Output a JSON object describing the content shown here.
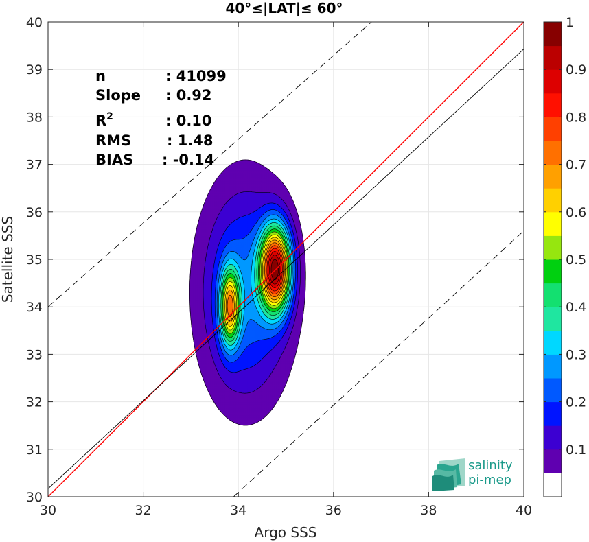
{
  "chart_data": {
    "type": "contour",
    "title": "40°≤|LAT|≤ 60°",
    "xlabel": "Argo SSS",
    "ylabel": "Satellite SSS",
    "xlim": [
      30,
      40
    ],
    "ylim": [
      30,
      40
    ],
    "xticks": [
      "30",
      "32",
      "34",
      "36",
      "38",
      "40"
    ],
    "yticks": [
      "30",
      "31",
      "32",
      "33",
      "34",
      "35",
      "36",
      "37",
      "38",
      "39",
      "40"
    ],
    "grid": true,
    "stats": [
      {
        "label": "n",
        "value": ": 41099"
      },
      {
        "label": "Slope",
        "value": ": 0.92"
      },
      {
        "label": "R",
        "sup": "2",
        "value": ": 0.10"
      },
      {
        "label": "RMS",
        "value": ": 1.48"
      },
      {
        "label": "BIAS",
        "value": ": -0.14"
      }
    ],
    "lines": [
      {
        "name": "1:1",
        "color": "#ff0000",
        "x": [
          30,
          40
        ],
        "y": [
          30,
          40
        ]
      },
      {
        "name": "fit",
        "color": "#000000",
        "x": [
          30,
          40
        ],
        "y": [
          30.17,
          39.43
        ]
      },
      {
        "name": "upper",
        "color": "#000000",
        "dash": true,
        "x": [
          30,
          36.8
        ],
        "y": [
          34,
          40
        ]
      },
      {
        "name": "lower",
        "color": "#000000",
        "dash": true,
        "x": [
          33.9,
          40
        ],
        "y": [
          30,
          35.6
        ]
      }
    ],
    "density_peaks": [
      {
        "x": 34.78,
        "y": 34.8,
        "sx": 0.22,
        "sy": 0.62,
        "w": 1.0
      },
      {
        "x": 33.82,
        "y": 34.0,
        "sx": 0.14,
        "sy": 0.55,
        "w": 0.62
      },
      {
        "x": 34.15,
        "y": 34.3,
        "sx": 0.65,
        "sy": 1.55,
        "w": 0.3
      }
    ],
    "contour_levels": [
      0.05,
      0.1,
      0.15,
      0.2,
      0.25,
      0.3,
      0.35,
      0.4,
      0.45,
      0.5,
      0.55,
      0.6,
      0.65,
      0.7,
      0.75,
      0.8,
      0.85,
      0.9,
      0.95
    ],
    "colorbar": {
      "ticks": [
        "0.1",
        "0.2",
        "0.3",
        "0.4",
        "0.5",
        "0.6",
        "0.7",
        "0.8",
        "0.9",
        "1"
      ],
      "colors": [
        "#ffffff",
        "#5f00b0",
        "#3c00d2",
        "#0014ff",
        "#0059ff",
        "#0098ff",
        "#00d8ff",
        "#1fe6a0",
        "#13e070",
        "#00d010",
        "#96e60f",
        "#ffff00",
        "#ffd000",
        "#ffa000",
        "#ff7000",
        "#ff4000",
        "#ff1000",
        "#dd0000",
        "#bb0000",
        "#870000"
      ]
    }
  },
  "logo": {
    "line1": "salinity",
    "line2": "pi-mep"
  }
}
